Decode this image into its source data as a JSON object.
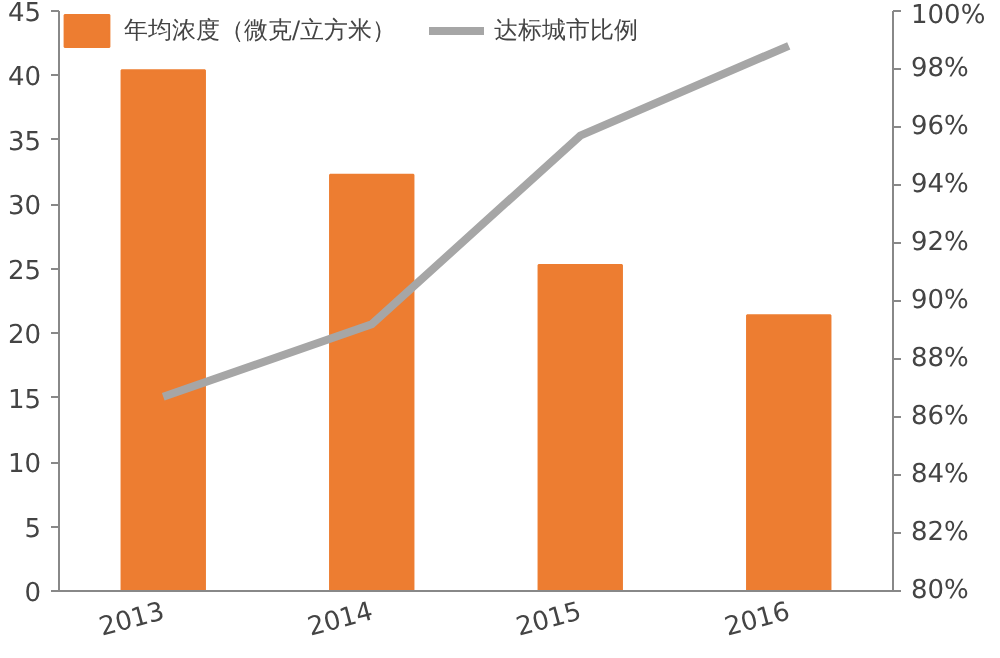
{
  "chart_data": {
    "type": "bar",
    "categories": [
      "2013",
      "2014",
      "2015",
      "2016"
    ],
    "series": [
      {
        "name": "年均浓度（微克/立方米）",
        "color": "#ed7d31",
        "values": [
          40.4,
          32.3,
          25.3,
          21.4
        ]
      },
      {
        "name": "达标城市比例",
        "color": "#a6a6a6",
        "type": "line",
        "axis": "y2",
        "values": [
          86.7,
          89.2,
          95.7,
          98.8
        ]
      }
    ],
    "ylim": [
      0,
      45
    ],
    "yticks": [
      0,
      5,
      10,
      15,
      20,
      25,
      30,
      35,
      40,
      45
    ],
    "y2lim": [
      80,
      100
    ],
    "y2ticks": [
      {
        "value": 80,
        "label": "80%"
      },
      {
        "value": 82,
        "label": "82%"
      },
      {
        "value": 84,
        "label": "84%"
      },
      {
        "value": 86,
        "label": "86%"
      },
      {
        "value": 88,
        "label": "88%"
      },
      {
        "value": 90,
        "label": "90%"
      },
      {
        "value": 92,
        "label": "92%"
      },
      {
        "value": 94,
        "label": "94%"
      },
      {
        "value": 96,
        "label": "96%"
      },
      {
        "value": 98,
        "label": "98%"
      },
      {
        "value": 100,
        "label": "100%"
      }
    ],
    "grid": false,
    "legend": "top",
    "marker": "none",
    "line_style": "solid"
  }
}
